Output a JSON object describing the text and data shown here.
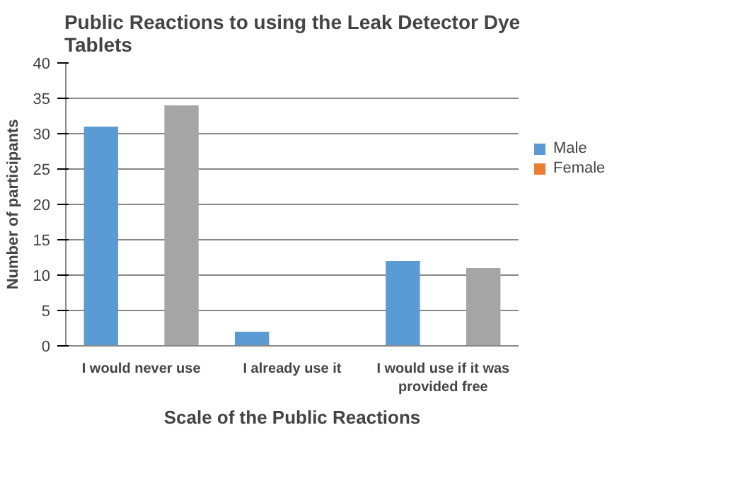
{
  "chart_data": {
    "type": "bar",
    "title": "Public Reactions to using the Leak Detector Dye Tablets",
    "xlabel": "Scale of the Public Reactions",
    "ylabel": "Number of participants",
    "categories": [
      "I would never use",
      "I already use it",
      "I would use if it was provided free"
    ],
    "series": [
      {
        "name": "Male",
        "color": "#5b9bd5",
        "values": [
          31,
          2,
          12
        ]
      },
      {
        "name": "Female",
        "color": "#ed7d31",
        "values": [
          null,
          null,
          null
        ]
      },
      {
        "color": "#a5a5a5",
        "values": [
          34,
          null,
          11
        ]
      }
    ],
    "ylim": [
      0,
      40
    ],
    "yticks": [
      0,
      5,
      10,
      15,
      20,
      25,
      30,
      35,
      40
    ],
    "grid": "y",
    "legend": "right"
  }
}
